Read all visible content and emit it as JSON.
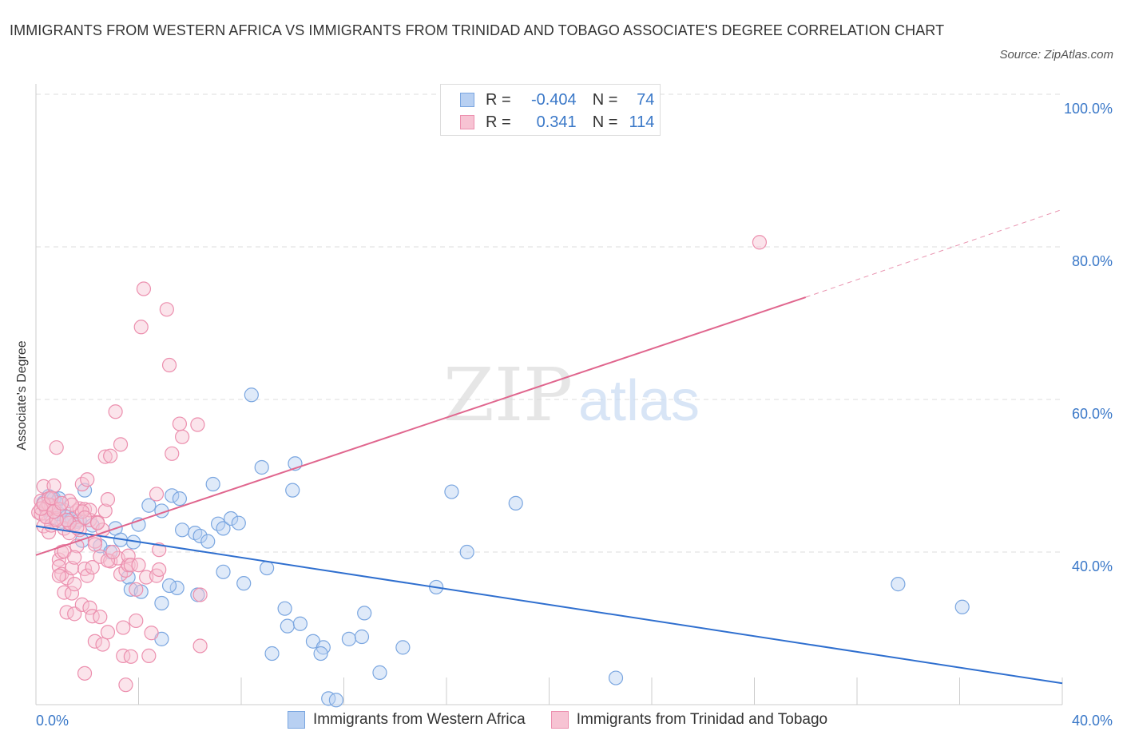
{
  "title": "IMMIGRANTS FROM WESTERN AFRICA VS IMMIGRANTS FROM TRINIDAD AND TOBAGO ASSOCIATE'S DEGREE CORRELATION CHART",
  "source": "Source: ZipAtlas.com",
  "watermark": {
    "zip": "ZIP",
    "atlas": "atlas"
  },
  "legend": {
    "r_label": "R =",
    "n_label": "N =",
    "rows": [
      {
        "r": "-0.404",
        "n": "74"
      },
      {
        "r": "0.341",
        "n": "114"
      }
    ]
  },
  "colors": {
    "blue_fill": "#b8d0f2",
    "blue_stroke": "#7aa6e0",
    "blue_line": "#2f6fcf",
    "pink_fill": "#f7c3d3",
    "pink_stroke": "#ec8fae",
    "pink_line": "#e0668e",
    "axis_text": "#3a78c8",
    "grid": "#dddddd"
  },
  "chart_data": {
    "type": "scatter",
    "ylabel": "Associate's Degree",
    "xlim": [
      0,
      40
    ],
    "ylim": [
      20,
      100
    ],
    "x_tick_labels": [
      {
        "value": 0,
        "label": "0.0%"
      },
      {
        "value": 40,
        "label": "40.0%"
      }
    ],
    "y_tick_labels": [
      {
        "value": 40,
        "label": "40.0%"
      },
      {
        "value": 60,
        "label": "60.0%"
      },
      {
        "value": 80,
        "label": "80.0%"
      },
      {
        "value": 100,
        "label": "100.0%"
      }
    ],
    "grid": true,
    "legend_position": "top-center",
    "series": [
      {
        "name": "Immigrants from Western Africa",
        "color": "#7aa6e0",
        "trend": {
          "x": [
            0,
            40
          ],
          "y": [
            43.4,
            22.8
          ]
        },
        "points": [
          [
            0.3,
            46.5
          ],
          [
            0.4,
            45.6
          ],
          [
            0.5,
            47.3
          ],
          [
            0.6,
            47.0
          ],
          [
            0.7,
            47.0
          ],
          [
            0.8,
            46.5
          ],
          [
            0.9,
            45.0
          ],
          [
            1.0,
            44.0
          ],
          [
            1.1,
            45.5
          ],
          [
            1.2,
            44.6
          ],
          [
            1.4,
            44.3
          ],
          [
            1.6,
            44.0
          ],
          [
            1.9,
            48.1
          ],
          [
            1.8,
            41.5
          ],
          [
            2.5,
            40.8
          ],
          [
            2.9,
            40.0
          ],
          [
            3.1,
            43.1
          ],
          [
            3.3,
            41.6
          ],
          [
            3.8,
            41.3
          ],
          [
            4.0,
            43.6
          ],
          [
            4.4,
            46.1
          ],
          [
            4.9,
            45.4
          ],
          [
            5.3,
            47.4
          ],
          [
            5.6,
            47.0
          ],
          [
            5.7,
            42.9
          ],
          [
            6.2,
            42.5
          ],
          [
            6.4,
            42.1
          ],
          [
            6.7,
            41.4
          ],
          [
            6.9,
            48.9
          ],
          [
            7.1,
            43.7
          ],
          [
            7.3,
            43.1
          ],
          [
            7.6,
            44.4
          ],
          [
            7.9,
            43.8
          ],
          [
            8.4,
            60.6
          ],
          [
            8.8,
            51.1
          ],
          [
            10.1,
            51.6
          ],
          [
            9.0,
            37.9
          ],
          [
            9.7,
            32.6
          ],
          [
            9.8,
            30.3
          ],
          [
            10.3,
            30.6
          ],
          [
            10.8,
            28.3
          ],
          [
            11.2,
            27.5
          ],
          [
            11.1,
            26.7
          ],
          [
            12.2,
            28.6
          ],
          [
            12.7,
            28.9
          ],
          [
            12.8,
            32.0
          ],
          [
            13.4,
            24.2
          ],
          [
            14.3,
            27.5
          ],
          [
            15.6,
            35.4
          ],
          [
            16.2,
            47.9
          ],
          [
            16.8,
            40.0
          ],
          [
            18.7,
            46.4
          ],
          [
            22.6,
            23.5
          ],
          [
            33.6,
            35.8
          ],
          [
            36.1,
            32.8
          ],
          [
            11.4,
            20.8
          ],
          [
            11.7,
            20.6
          ],
          [
            10.0,
            48.1
          ],
          [
            3.6,
            36.7
          ],
          [
            3.7,
            35.1
          ],
          [
            4.1,
            34.8
          ],
          [
            4.9,
            33.3
          ],
          [
            5.5,
            35.3
          ],
          [
            6.3,
            34.4
          ],
          [
            7.3,
            37.4
          ],
          [
            8.1,
            35.9
          ],
          [
            9.2,
            26.7
          ],
          [
            4.9,
            28.6
          ],
          [
            2.2,
            43.5
          ],
          [
            1.3,
            43.8
          ],
          [
            0.6,
            44.5
          ],
          [
            0.9,
            47.0
          ],
          [
            1.7,
            44.2
          ],
          [
            5.2,
            35.6
          ]
        ]
      },
      {
        "name": "Immigrants from Trinidad and Tobago",
        "color": "#ec8fae",
        "trend": {
          "x": [
            0,
            30
          ],
          "y": [
            39.6,
            73.4
          ]
        },
        "trend_dashed": {
          "x": [
            30,
            40
          ],
          "y": [
            73.4,
            84.9
          ]
        },
        "points": [
          [
            0.1,
            45.2
          ],
          [
            0.2,
            46.7
          ],
          [
            0.2,
            45.0
          ],
          [
            0.3,
            48.6
          ],
          [
            0.3,
            43.4
          ],
          [
            0.4,
            45.8
          ],
          [
            0.4,
            44.6
          ],
          [
            0.5,
            42.6
          ],
          [
            0.5,
            47.0
          ],
          [
            0.6,
            46.1
          ],
          [
            0.6,
            43.5
          ],
          [
            0.7,
            45.7
          ],
          [
            0.7,
            48.7
          ],
          [
            0.8,
            53.7
          ],
          [
            0.8,
            44.4
          ],
          [
            0.9,
            39.0
          ],
          [
            0.9,
            38.1
          ],
          [
            1.0,
            40.0
          ],
          [
            1.0,
            37.1
          ],
          [
            1.1,
            43.1
          ],
          [
            1.1,
            34.7
          ],
          [
            1.2,
            36.6
          ],
          [
            1.2,
            32.1
          ],
          [
            1.3,
            42.5
          ],
          [
            1.3,
            46.7
          ],
          [
            1.4,
            37.9
          ],
          [
            1.4,
            34.6
          ],
          [
            1.5,
            43.6
          ],
          [
            1.5,
            31.9
          ],
          [
            1.6,
            40.8
          ],
          [
            1.6,
            45.4
          ],
          [
            1.7,
            42.9
          ],
          [
            1.7,
            45.7
          ],
          [
            1.8,
            48.9
          ],
          [
            1.8,
            33.1
          ],
          [
            1.9,
            45.6
          ],
          [
            1.9,
            37.8
          ],
          [
            2.0,
            49.5
          ],
          [
            2.0,
            36.9
          ],
          [
            2.1,
            44.2
          ],
          [
            2.1,
            32.7
          ],
          [
            2.2,
            38.0
          ],
          [
            2.2,
            31.6
          ],
          [
            2.3,
            41.4
          ],
          [
            2.3,
            28.3
          ],
          [
            2.4,
            43.9
          ],
          [
            2.5,
            39.4
          ],
          [
            2.5,
            31.5
          ],
          [
            2.6,
            42.9
          ],
          [
            2.6,
            27.9
          ],
          [
            2.7,
            52.5
          ],
          [
            2.7,
            45.4
          ],
          [
            2.8,
            46.9
          ],
          [
            2.8,
            29.5
          ],
          [
            2.9,
            52.6
          ],
          [
            2.9,
            38.8
          ],
          [
            3.1,
            58.4
          ],
          [
            3.2,
            39.2
          ],
          [
            3.3,
            54.1
          ],
          [
            3.3,
            37.1
          ],
          [
            3.4,
            30.1
          ],
          [
            3.4,
            26.4
          ],
          [
            3.5,
            37.6
          ],
          [
            3.6,
            38.3
          ],
          [
            3.7,
            26.3
          ],
          [
            3.9,
            35.1
          ],
          [
            4.1,
            69.5
          ],
          [
            4.2,
            74.5
          ],
          [
            4.3,
            36.7
          ],
          [
            4.4,
            26.4
          ],
          [
            4.5,
            29.4
          ],
          [
            4.8,
            40.3
          ],
          [
            4.7,
            47.6
          ],
          [
            5.1,
            71.8
          ],
          [
            5.2,
            64.5
          ],
          [
            5.3,
            52.9
          ],
          [
            5.6,
            56.8
          ],
          [
            5.7,
            55.1
          ],
          [
            6.3,
            56.7
          ],
          [
            6.4,
            34.4
          ],
          [
            6.4,
            27.7
          ],
          [
            1.3,
            43.8
          ],
          [
            0.4,
            44.6
          ],
          [
            1.1,
            40.1
          ],
          [
            3.5,
            22.6
          ],
          [
            1.9,
            24.1
          ],
          [
            1.5,
            35.8
          ],
          [
            3.6,
            39.5
          ],
          [
            3.7,
            38.3
          ],
          [
            4.0,
            38.3
          ],
          [
            4.7,
            36.9
          ],
          [
            4.8,
            37.7
          ],
          [
            28.2,
            80.6
          ],
          [
            0.5,
            46.2
          ],
          [
            0.2,
            45.7
          ],
          [
            1.2,
            44.2
          ],
          [
            1.6,
            43.2
          ],
          [
            2.1,
            45.5
          ],
          [
            0.8,
            44.2
          ],
          [
            1.8,
            45.3
          ],
          [
            0.9,
            45.6
          ],
          [
            0.3,
            46.3
          ],
          [
            0.6,
            47.1
          ],
          [
            1.4,
            46.2
          ],
          [
            2.4,
            43.8
          ],
          [
            0.7,
            45.3
          ],
          [
            1.0,
            46.4
          ],
          [
            1.9,
            44.5
          ],
          [
            2.8,
            38.9
          ],
          [
            3.0,
            40.0
          ],
          [
            1.5,
            39.3
          ],
          [
            2.3,
            41.0
          ],
          [
            0.9,
            36.9
          ],
          [
            3.9,
            31.0
          ]
        ]
      }
    ]
  },
  "bottom_legend": [
    {
      "label": "Immigrants from Western Africa"
    },
    {
      "label": "Immigrants from Trinidad and Tobago"
    }
  ]
}
